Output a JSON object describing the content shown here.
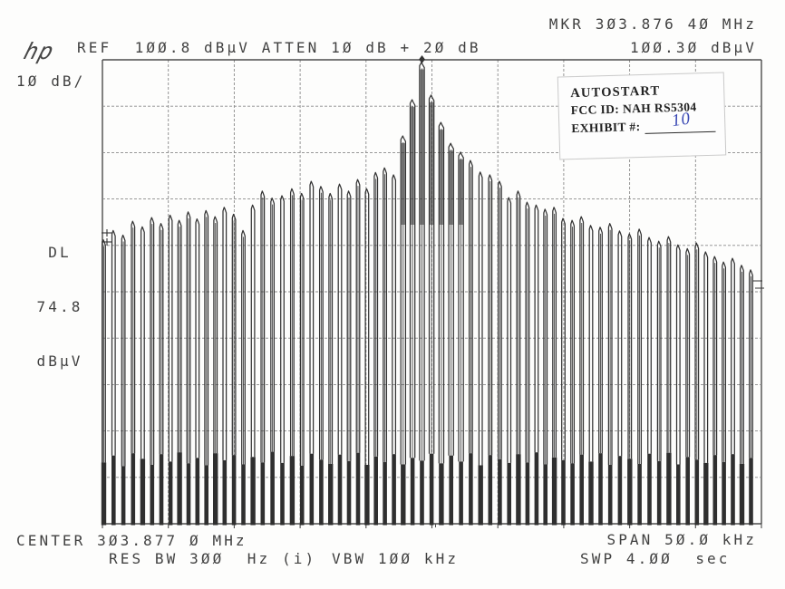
{
  "header": {
    "logo": "hp",
    "scale_per_div": "10 dB/",
    "ref_line": "REF  100.8 dBµV ATTEN 10 dB + 20 dB",
    "marker_freq_line": "MKR 303.876 40 MHz",
    "marker_ampl_line": "100.30 dBµV"
  },
  "display_line": {
    "label": "DL",
    "value": "74.8",
    "unit": "dBµV"
  },
  "stamp": {
    "line1": "AUTOSTART",
    "line2": "FCC ID: NAH  RS5304",
    "line3": "EXHIBIT #:",
    "exhibit_value": "10"
  },
  "footer": {
    "center_line": "CENTER 303.877 0 MHz",
    "span_line": "SPAN 50.0 kHz",
    "res_bw_line": "RES BW 300  Hz (i)",
    "vbw_line": "VBW 100 kHz",
    "sweep_line": "SWP 4.00  sec"
  },
  "colors": {
    "paper": "#fdfdfc",
    "frame": "#4c4c4c",
    "grid": "#8a8a8a",
    "trace": "#333333",
    "trace_fill": "#2f2f2f",
    "text": "#414141",
    "stamp_ink": "#3a49b4"
  },
  "chart_data": {
    "type": "bar",
    "title": "EMI comb spectrum, peak at marker",
    "x_axis": {
      "center_mhz": 303.877,
      "span_khz": 50.0,
      "divisions": 10,
      "start_khz_offset": -24.9,
      "spacing_khz": 0.713
    },
    "y_axis": {
      "ref_dbuv": 100.8,
      "per_div_db": 10,
      "divisions": 10,
      "min_dbuv": 0.8
    },
    "marker": {
      "freq_mhz_text": "303.876 40",
      "ampl_dbuv": 100.3,
      "khz_offset": -0.66
    },
    "display_line_dbuv": 74.8,
    "grid": "on",
    "spike_tops_dbuv": [
      62.0,
      64.0,
      63.0,
      66.0,
      64.8,
      66.8,
      65.5,
      67.3,
      66.2,
      68.0,
      66.5,
      68.3,
      67.0,
      69.0,
      67.5,
      64.0,
      69.5,
      72.5,
      71.0,
      71.5,
      73.0,
      72.0,
      74.6,
      73.5,
      72.0,
      74.0,
      72.5,
      75.0,
      73.0,
      76.5,
      77.5,
      76.0,
      84.4,
      92.2,
      100.3,
      93.2,
      87.3,
      82.8,
      80.9,
      79.1,
      76.6,
      76.0,
      74.6,
      71.1,
      72.5,
      70.1,
      69.5,
      68.6,
      69.0,
      66.6,
      66.2,
      67.0,
      65.1,
      64.7,
      65.5,
      63.9,
      63.3,
      64.3,
      62.5,
      61.7,
      62.7,
      60.9,
      60.1,
      61.3,
      59.4,
      58.4,
      57.2,
      58.0,
      56.5,
      55.5
    ],
    "spike_base_tops_dbuv": [
      14.0,
      15.5,
      13.2,
      16.0,
      14.8,
      13.5,
      15.8,
      14.2,
      16.2,
      13.8,
      15.0,
      13.4,
      16.0,
      14.5,
      15.6,
      13.6,
      15.2,
      14.0,
      16.3,
      13.9,
      15.4,
      13.3,
      15.9,
      14.6,
      13.7,
      15.7,
      14.3,
      16.1,
      13.5,
      15.3,
      14.1,
      15.8,
      13.6,
      15.0,
      14.4,
      15.9,
      13.8,
      15.5,
      14.2,
      16.0,
      13.4,
      15.6,
      14.7,
      13.9,
      15.8,
      14.0,
      16.2,
      13.6,
      15.1,
      14.5,
      13.8,
      15.7,
      14.2,
      16.0,
      13.5,
      15.4,
      14.8,
      13.7,
      15.9,
      14.3,
      16.1,
      13.6,
      15.2,
      14.6,
      13.9,
      15.6,
      14.1,
      15.8,
      13.7,
      15.0
    ],
    "baseline_dbuv": 0.8
  }
}
